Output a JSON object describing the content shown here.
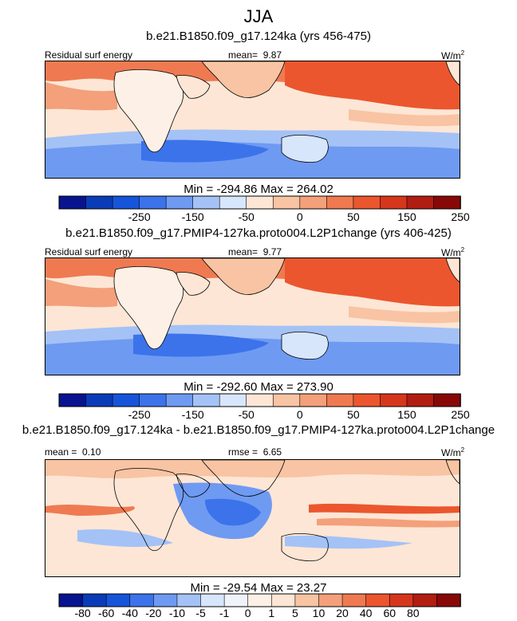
{
  "figure_title": "JJA",
  "colors": {
    "full_palette": [
      "#08138f",
      "#0b3cb7",
      "#1655da",
      "#3c73eb",
      "#6f9af2",
      "#a4c2f6",
      "#d7e6fb",
      "#fde6d5",
      "#f8c4a3",
      "#f3a07b",
      "#ef7a51",
      "#eb562e",
      "#d6371c",
      "#b21d12",
      "#880808"
    ],
    "diff_palette": [
      "#08138f",
      "#0b3cb7",
      "#1655da",
      "#3c73eb",
      "#6f9af2",
      "#a4c2f6",
      "#d7e6fb",
      "#f0f4fa",
      "#fdf0e6",
      "#fde6d5",
      "#f8c4a3",
      "#f3a07b",
      "#ef7a51",
      "#eb562e",
      "#d6371c",
      "#b21d12",
      "#880808"
    ],
    "land_outline": "#000000",
    "background": "#ffffff"
  },
  "chart_data": [
    {
      "type": "heatmap",
      "title": "b.e21.B1850.f09_g17.124ka (yrs 456-475)",
      "left_label": "Residual surf energy",
      "mean_label": "mean=",
      "mean_value": "9.87",
      "units": "W/m",
      "units_sup": "2",
      "min_max_label": "Min = -294.86 Max = 264.02",
      "min": -294.86,
      "max": 264.02,
      "colorbar_levels": [
        -350,
        -300,
        -250,
        -200,
        -150,
        -100,
        -50,
        0,
        25,
        50,
        100,
        150,
        200,
        250,
        300
      ],
      "colorbar_labels": [
        "-250",
        "-150",
        "-50",
        "0",
        "50",
        "150",
        "250"
      ]
    },
    {
      "type": "heatmap",
      "title": "b.e21.B1850.f09_g17.PMIP4-127ka.proto004.L2P1change (yrs 406-425)",
      "left_label": "Residual surf energy",
      "mean_label": "mean=",
      "mean_value": "9.77",
      "units": "W/m",
      "units_sup": "2",
      "min_max_label": "Min = -292.60 Max = 273.90",
      "min": -292.6,
      "max": 273.9,
      "colorbar_levels": [
        -350,
        -300,
        -250,
        -200,
        -150,
        -100,
        -50,
        0,
        25,
        50,
        100,
        150,
        200,
        250,
        300
      ],
      "colorbar_labels": [
        "-250",
        "-150",
        "-50",
        "0",
        "50",
        "150",
        "250"
      ]
    },
    {
      "type": "heatmap",
      "title": "b.e21.B1850.f09_g17.124ka - b.e21.B1850.f09_g17.PMIP4-127ka.proto004.L2P1change",
      "mean_label": "mean =",
      "mean_value": "0.10",
      "rmse_label": "rmse =",
      "rmse_value": "6.65",
      "units": "W/m",
      "units_sup": "2",
      "min_max_label": "Min = -29.54 Max = 23.27",
      "min": -29.54,
      "max": 23.27,
      "colorbar_levels": [
        -80,
        -60,
        -40,
        -20,
        -10,
        -5,
        -1,
        0,
        1,
        5,
        10,
        20,
        40,
        60,
        80
      ],
      "colorbar_labels": [
        "-80",
        "-60",
        "-40",
        "-20",
        "-10",
        "-5",
        "-1",
        "0",
        "1",
        "5",
        "10",
        "20",
        "40",
        "60",
        "80"
      ]
    }
  ]
}
